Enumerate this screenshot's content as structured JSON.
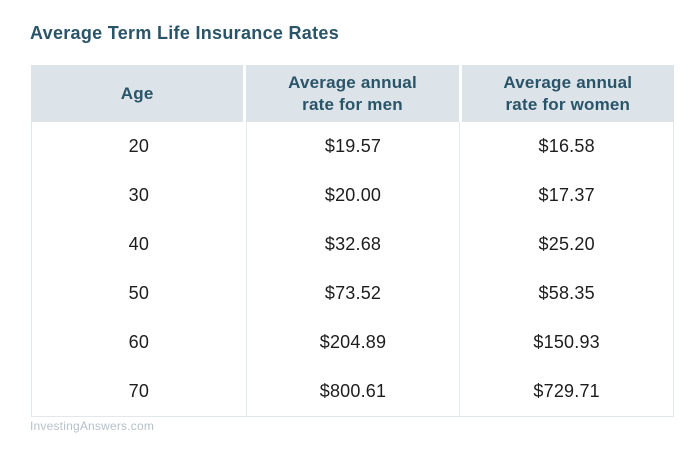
{
  "page": {
    "title": "Average Term Life Insurance Rates",
    "source": "InvestingAnswers.com"
  },
  "colors": {
    "background": "#ffffff",
    "title_text": "#2a5468",
    "header_bg": "#dce4ea",
    "header_text": "#2a5468",
    "body_text": "#1d1d1f",
    "border": "#e2e7eb",
    "source_text": "#b6c1cc"
  },
  "chart_data": {
    "type": "table",
    "title": "Average Term Life Insurance Rates",
    "columns": [
      "Age",
      "Average annual rate for men",
      "Average annual rate for women"
    ],
    "rows": [
      [
        "20",
        "$19.57",
        "$16.58"
      ],
      [
        "30",
        "$20.00",
        "$17.37"
      ],
      [
        "40",
        "$32.68",
        "$25.20"
      ],
      [
        "50",
        "$73.52",
        "$58.35"
      ],
      [
        "60",
        "$204.89",
        "$150.93"
      ],
      [
        "70",
        "$800.61",
        "$729.71"
      ]
    ]
  }
}
